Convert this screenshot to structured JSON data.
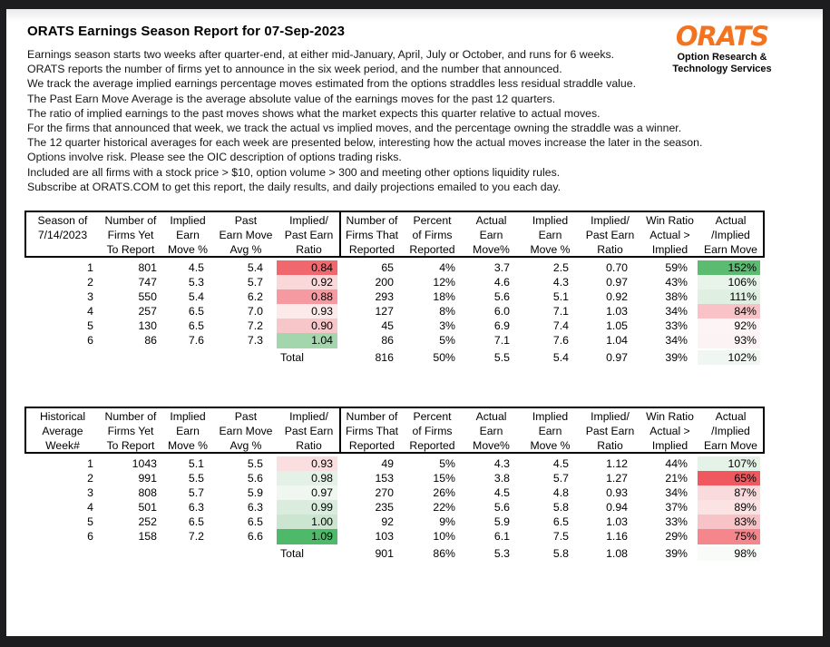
{
  "report": {
    "title": "ORATS Earnings Season Report for 07-Sep-2023",
    "lines": [
      "Earnings season starts two weeks after quarter-end, at either mid-January, April, July or October, and runs for 6 weeks.",
      "ORATS reports the number of firms yet to announce in the six week period, and the number that announced.",
      "We track the average implied earnings percentage moves estimated from the options straddles less residual straddle value.",
      "The Past Earn Move Average is the average absolute value of the earnings moves for the past 12 quarters.",
      "The ratio of implied earnings to the past moves shows what the market expects this quarter relative to actual moves.",
      "For the firms that announced that week, we track the actual vs implied moves, and the percentage owning the straddle was a winner.",
      "The 12 quarter historical averages for each week are presented below, interesting how the actual moves increase the later in the season.",
      "Options involve risk. Please see the OIC description of options trading risks.",
      "Included are all firms with a stock price > $10, option volume > 300 and meeting other options liquidity rules.",
      "Subscribe at ORATS.COM to get this report, the daily results, and daily projections emailed to you each day."
    ]
  },
  "logo": {
    "name": "ORATS",
    "tagline_line1": "Option Research &",
    "tagline_line2": "Technology Services",
    "brand_color": "#F4731F"
  },
  "tables": [
    {
      "name": "current-season",
      "columns": [
        [
          "Season of",
          "7/14/2023",
          ""
        ],
        [
          "Number of",
          "Firms Yet",
          "To Report"
        ],
        [
          "Implied",
          "Earn",
          "Move %"
        ],
        [
          "Past",
          "Earn Move",
          "Avg %"
        ],
        [
          "Implied/",
          "Past Earn",
          "Ratio"
        ],
        [
          "Number of",
          "Firms That",
          "Reported"
        ],
        [
          "Percent",
          "of Firms",
          "Reported"
        ],
        [
          "Actual",
          "Earn",
          "Move%"
        ],
        [
          "Implied",
          "Earn",
          "Move %"
        ],
        [
          "Implied/",
          "Past Earn",
          "Ratio"
        ],
        [
          "Win Ratio",
          "Actual >",
          "Implied"
        ],
        [
          "Actual",
          "/Implied",
          "Earn Move"
        ]
      ],
      "rows": [
        {
          "cells": [
            "1",
            "801",
            "4.5",
            "5.4",
            "0.84",
            "65",
            "4%",
            "3.7",
            "2.5",
            "0.70",
            "59%",
            "152%"
          ],
          "ratio_color": "#F0686D",
          "ai_color": "#5ABB71"
        },
        {
          "cells": [
            "2",
            "747",
            "5.3",
            "5.7",
            "0.92",
            "200",
            "12%",
            "4.6",
            "4.3",
            "0.97",
            "43%",
            "106%"
          ],
          "ratio_color": "#FAD7D9",
          "ai_color": "#E8F4EA"
        },
        {
          "cells": [
            "3",
            "550",
            "5.4",
            "6.2",
            "0.88",
            "293",
            "18%",
            "5.6",
            "5.1",
            "0.92",
            "38%",
            "111%"
          ],
          "ratio_color": "#F49AA0",
          "ai_color": "#DFF0E2"
        },
        {
          "cells": [
            "4",
            "257",
            "6.5",
            "7.0",
            "0.93",
            "127",
            "8%",
            "6.0",
            "7.1",
            "1.03",
            "34%",
            "84%"
          ],
          "ratio_color": "#FCE9EA",
          "ai_color": "#F9C2C6"
        },
        {
          "cells": [
            "5",
            "130",
            "6.5",
            "7.2",
            "0.90",
            "45",
            "3%",
            "6.9",
            "7.4",
            "1.05",
            "33%",
            "92%"
          ],
          "ratio_color": "#F7C6C9",
          "ai_color": "#FDF5F5"
        },
        {
          "cells": [
            "6",
            "86",
            "7.6",
            "7.3",
            "1.04",
            "86",
            "5%",
            "7.1",
            "7.6",
            "1.04",
            "34%",
            "93%"
          ],
          "ratio_color": "#A3D6AC",
          "ai_color": "#FCF4F4"
        }
      ],
      "total": {
        "cells": [
          "",
          "",
          "",
          "",
          "Total",
          "816",
          "50%",
          "5.5",
          "5.4",
          "0.97",
          "39%",
          "102%"
        ],
        "ai_color": "#EFF7F0"
      }
    },
    {
      "name": "historical-average",
      "columns": [
        [
          "Historical",
          "Average",
          "Week#"
        ],
        [
          "Number of",
          "Firms Yet",
          "To Report"
        ],
        [
          "Implied",
          "Earn",
          "Move %"
        ],
        [
          "Past",
          "Earn Move",
          "Avg %"
        ],
        [
          "Implied/",
          "Past Earn",
          "Ratio"
        ],
        [
          "Number of",
          "Firms That",
          "Reported"
        ],
        [
          "Percent",
          "of Firms",
          "Reported"
        ],
        [
          "Actual",
          "Earn",
          "Move%"
        ],
        [
          "Implied",
          "Earn",
          "Move %"
        ],
        [
          "Implied/",
          "Past Earn",
          "Ratio"
        ],
        [
          "Win Ratio",
          "Actual >",
          "Implied"
        ],
        [
          "Actual",
          "/Implied",
          "Earn Move"
        ]
      ],
      "rows": [
        {
          "cells": [
            "1",
            "1043",
            "5.1",
            "5.5",
            "0.93",
            "49",
            "5%",
            "4.3",
            "4.5",
            "1.12",
            "44%",
            "107%"
          ],
          "ratio_color": "#FADEE0",
          "ai_color": "#E5F2E8"
        },
        {
          "cells": [
            "2",
            "991",
            "5.5",
            "5.6",
            "0.98",
            "153",
            "15%",
            "3.8",
            "5.7",
            "1.27",
            "21%",
            "65%"
          ],
          "ratio_color": "#E3F1E6",
          "ai_color": "#F0585F"
        },
        {
          "cells": [
            "3",
            "808",
            "5.7",
            "5.9",
            "0.97",
            "270",
            "26%",
            "4.5",
            "4.8",
            "0.93",
            "34%",
            "87%"
          ],
          "ratio_color": "#F0F7F1",
          "ai_color": "#FADBDD"
        },
        {
          "cells": [
            "4",
            "501",
            "6.3",
            "6.3",
            "0.99",
            "235",
            "22%",
            "5.6",
            "5.8",
            "0.94",
            "37%",
            "89%"
          ],
          "ratio_color": "#D9ECDD",
          "ai_color": "#FBE3E4"
        },
        {
          "cells": [
            "5",
            "252",
            "6.5",
            "6.5",
            "1.00",
            "92",
            "9%",
            "5.9",
            "6.5",
            "1.03",
            "33%",
            "83%"
          ],
          "ratio_color": "#CBE5D1",
          "ai_color": "#F7C3C6"
        },
        {
          "cells": [
            "6",
            "158",
            "7.2",
            "6.6",
            "1.09",
            "103",
            "10%",
            "6.1",
            "7.5",
            "1.16",
            "29%",
            "75%"
          ],
          "ratio_color": "#4FB96A",
          "ai_color": "#F4868C"
        }
      ],
      "total": {
        "cells": [
          "",
          "",
          "",
          "",
          "Total",
          "901",
          "86%",
          "5.3",
          "5.8",
          "1.08",
          "39%",
          "98%"
        ],
        "ai_color": "#F8FBF8"
      }
    }
  ]
}
